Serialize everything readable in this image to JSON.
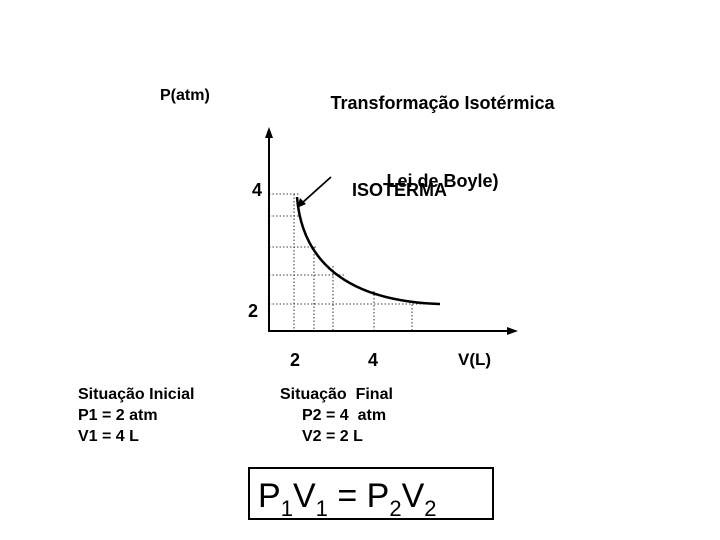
{
  "title": {
    "line1": "Transformação Isotérmica",
    "line2": "Lei de Boyle)"
  },
  "axes": {
    "y_label": "P(atm)",
    "x_label": "V(L)",
    "y_ticks": [
      "4",
      "2"
    ],
    "x_ticks": [
      "2",
      "4"
    ]
  },
  "curve_label": "ISOTERMA",
  "initial_state": {
    "heading": "Situação Inicial",
    "pressure": "P1 = 2 atm",
    "volume": "V1 = 4 L"
  },
  "final_state": {
    "heading": "Situação  Final",
    "pressure": "P2 = 4  atm",
    "volume": "V2 = 2 L"
  },
  "formula": {
    "p1": "P",
    "s1": "1",
    "v1": "V",
    "s2": "1",
    "eq": " = ",
    "p2": "P",
    "s3": "2",
    "v2": "V",
    "s4": "2"
  },
  "chart_data": {
    "type": "line",
    "xlabel": "V(L)",
    "ylabel": "P(atm)",
    "x_ticks": [
      2,
      4
    ],
    "y_ticks": [
      2,
      4
    ],
    "series": [
      {
        "name": "ISOTERMA",
        "x": [
          2,
          2.5,
          3,
          3.5,
          4
        ],
        "y": [
          4,
          3.2,
          2.67,
          2.29,
          2
        ]
      }
    ]
  }
}
